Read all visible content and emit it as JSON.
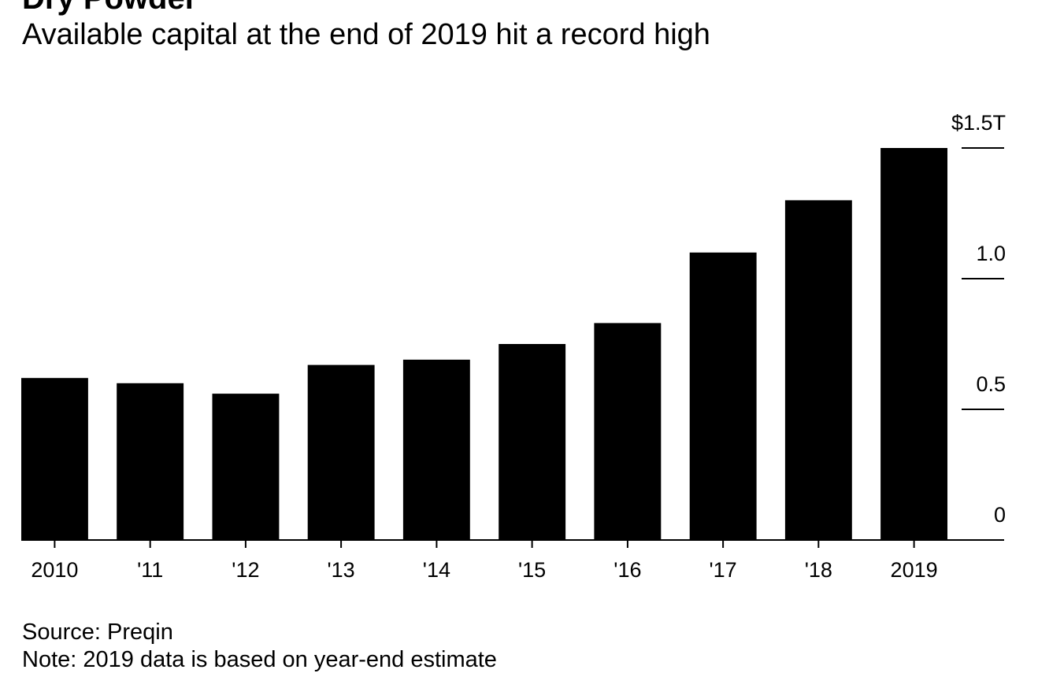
{
  "header": {
    "title": "Dry Powder",
    "subtitle": "Available capital at the end of 2019 hit a record high"
  },
  "footer": {
    "source": "Source: Preqin",
    "note": "Note: 2019 data is based on year-end estimate"
  },
  "colors": {
    "bar": "#000000",
    "axis": "#000000",
    "background": "#ffffff"
  },
  "chart_data": {
    "type": "bar",
    "title": "Dry Powder",
    "subtitle": "Available capital at the end of 2019 hit a record high",
    "categories": [
      "2010",
      "'11",
      "'12",
      "'13",
      "'14",
      "'15",
      "'16",
      "'17",
      "'18",
      "2019"
    ],
    "series": [
      {
        "values": [
          0.62,
          0.6,
          0.56,
          0.67,
          0.69,
          0.75,
          0.83,
          1.1,
          1.3,
          1.5
        ]
      }
    ],
    "y_ticks": [
      {
        "value": 0,
        "label": "0"
      },
      {
        "value": 0.5,
        "label": "0.5"
      },
      {
        "value": 1.0,
        "label": "1.0"
      },
      {
        "value": 1.5,
        "label": "$1.5T"
      }
    ],
    "ylim": [
      0,
      1.5
    ],
    "y_axis_position": "right",
    "grid": false,
    "legend": "none",
    "xlabel": "",
    "ylabel": ""
  }
}
